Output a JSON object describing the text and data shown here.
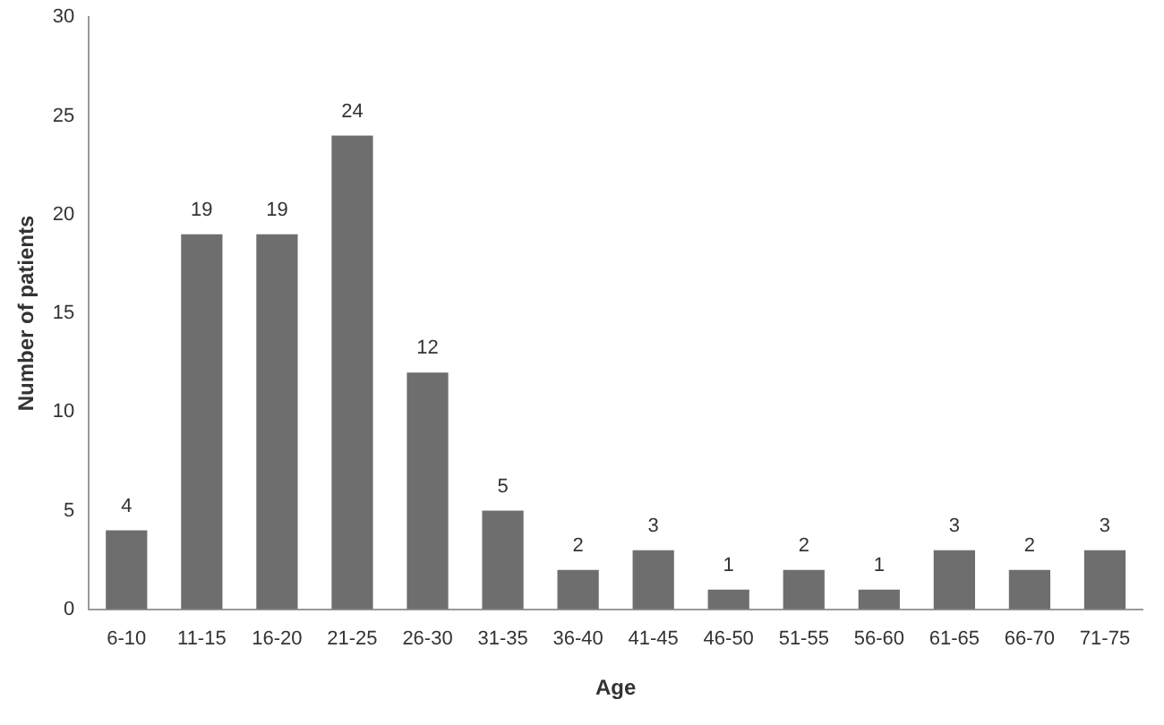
{
  "chart_data": {
    "type": "bar",
    "xlabel": "Age",
    "ylabel": "Number of patients",
    "categories": [
      "6-10",
      "11-15",
      "16-20",
      "21-25",
      "26-30",
      "31-35",
      "36-40",
      "41-45",
      "46-50",
      "51-55",
      "56-60",
      "61-65",
      "66-70",
      "71-75"
    ],
    "values": [
      4,
      19,
      19,
      24,
      12,
      5,
      2,
      3,
      1,
      2,
      1,
      3,
      2,
      3
    ],
    "color": "#6e6e6e",
    "ylim": [
      0,
      30
    ],
    "yticks": [
      0,
      5,
      10,
      15,
      20,
      25,
      30
    ],
    "grid": false,
    "data_labels": true
  }
}
